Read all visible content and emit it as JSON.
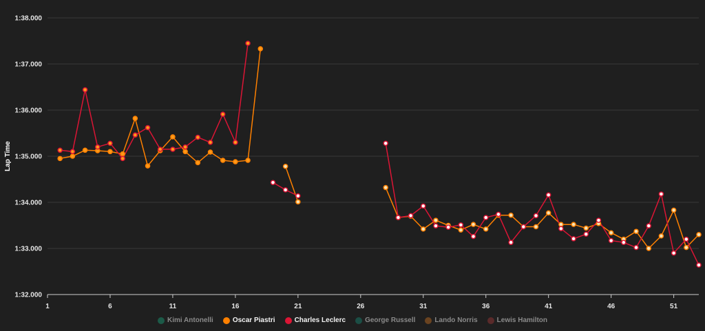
{
  "chart_data": {
    "type": "line",
    "ylabel": "Lap Time",
    "y_ticks": [
      "1:32.000",
      "1:33.000",
      "1:34.000",
      "1:35.000",
      "1:36.000",
      "1:37.000",
      "1:38.000"
    ],
    "ylim_seconds": [
      92.0,
      98.0
    ],
    "x_ticks": [
      1,
      6,
      11,
      16,
      21,
      26,
      31,
      36,
      41,
      46,
      51
    ],
    "xlim": [
      1,
      53
    ],
    "grid": "horizontal",
    "legend_position": "bottom-center",
    "series": [
      {
        "name": "Oscar Piastri",
        "color": "#ff8000",
        "marker_fill": "#ff9a1a",
        "visible": true,
        "points": [
          [
            2,
            94.95
          ],
          [
            3,
            95.0
          ],
          [
            4,
            95.13
          ],
          [
            5,
            95.12
          ],
          [
            6,
            95.1
          ],
          [
            7,
            95.05
          ],
          [
            8,
            95.82
          ],
          [
            9,
            94.79
          ],
          [
            10,
            95.12
          ],
          [
            11,
            95.42
          ],
          [
            12,
            95.1
          ],
          [
            13,
            94.86
          ],
          [
            14,
            95.09
          ],
          [
            15,
            94.91
          ],
          [
            16,
            94.88
          ],
          [
            17,
            94.91
          ],
          [
            18,
            97.33
          ],
          null,
          [
            20,
            94.78
          ],
          [
            21,
            94.01
          ],
          null,
          [
            28,
            94.32
          ],
          [
            29,
            93.67
          ],
          [
            30,
            93.7
          ],
          [
            31,
            93.42
          ],
          [
            32,
            93.61
          ],
          [
            33,
            93.5
          ],
          [
            34,
            93.4
          ],
          [
            35,
            93.52
          ],
          [
            36,
            93.42
          ],
          [
            37,
            93.72
          ],
          [
            38,
            93.72
          ],
          [
            39,
            93.47
          ],
          [
            40,
            93.47
          ],
          [
            41,
            93.77
          ],
          [
            42,
            93.52
          ],
          [
            43,
            93.52
          ],
          [
            44,
            93.44
          ],
          [
            45,
            93.54
          ],
          [
            46,
            93.34
          ],
          [
            47,
            93.2
          ],
          [
            48,
            93.37
          ],
          [
            49,
            93.0
          ],
          [
            50,
            93.27
          ],
          [
            51,
            93.83
          ],
          [
            52,
            93.02
          ],
          [
            53,
            93.3
          ]
        ]
      },
      {
        "name": "Charles Leclerc",
        "color": "#dc1535",
        "marker_fill": "#ff9a1a",
        "visible": true,
        "points": [
          [
            2,
            95.13
          ],
          [
            3,
            95.1
          ],
          [
            4,
            96.44
          ],
          [
            5,
            95.2
          ],
          [
            6,
            95.28
          ],
          [
            7,
            94.95
          ],
          [
            8,
            95.46
          ],
          [
            9,
            95.62
          ],
          [
            10,
            95.15
          ],
          [
            11,
            95.15
          ],
          [
            12,
            95.2
          ],
          [
            13,
            95.41
          ],
          [
            14,
            95.3
          ],
          [
            15,
            95.91
          ],
          [
            16,
            95.3
          ],
          [
            17,
            97.45
          ],
          null,
          [
            19,
            94.43
          ],
          [
            20,
            94.27
          ],
          [
            21,
            94.14
          ],
          null,
          [
            28,
            95.28
          ],
          [
            29,
            93.67
          ],
          [
            30,
            93.71
          ],
          [
            31,
            93.92
          ],
          [
            32,
            93.49
          ],
          [
            33,
            93.46
          ],
          [
            34,
            93.51
          ],
          [
            35,
            93.26
          ],
          [
            36,
            93.67
          ],
          [
            37,
            93.74
          ],
          [
            38,
            93.13
          ],
          [
            39,
            93.47
          ],
          [
            40,
            93.71
          ],
          [
            41,
            94.16
          ],
          [
            42,
            93.43
          ],
          [
            43,
            93.21
          ],
          [
            44,
            93.31
          ],
          [
            45,
            93.61
          ],
          [
            46,
            93.17
          ],
          [
            47,
            93.13
          ],
          [
            48,
            93.02
          ],
          [
            49,
            93.49
          ],
          [
            50,
            94.18
          ],
          [
            51,
            92.9
          ],
          [
            52,
            93.2
          ],
          [
            53,
            92.64
          ]
        ]
      }
    ],
    "legend": [
      {
        "name": "Kimi Antonelli",
        "color": "#1c5a48",
        "active": false
      },
      {
        "name": "Oscar Piastri",
        "color": "#ff8000",
        "active": true
      },
      {
        "name": "Charles Leclerc",
        "color": "#dc1535",
        "active": true
      },
      {
        "name": "George Russell",
        "color": "#1b4e45",
        "active": false
      },
      {
        "name": "Lando Norris",
        "color": "#6a4320",
        "active": false
      },
      {
        "name": "Lewis Hamilton",
        "color": "#5a2a2a",
        "active": false
      }
    ]
  }
}
